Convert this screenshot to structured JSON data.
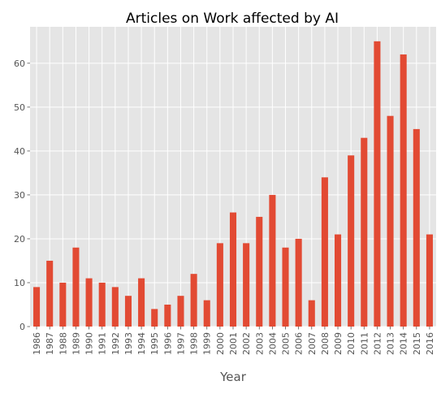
{
  "chart_data": {
    "type": "bar",
    "title": "Articles on Work affected by AI",
    "xlabel": "Year",
    "ylabel": "",
    "categories": [
      "1986",
      "1987",
      "1988",
      "1989",
      "1990",
      "1991",
      "1992",
      "1993",
      "1994",
      "1995",
      "1996",
      "1997",
      "1998",
      "1999",
      "2000",
      "2001",
      "2002",
      "2003",
      "2004",
      "2005",
      "2006",
      "2007",
      "2008",
      "2009",
      "2010",
      "2011",
      "2012",
      "2013",
      "2014",
      "2015",
      "2016"
    ],
    "values": [
      9,
      15,
      10,
      18,
      11,
      10,
      9,
      7,
      11,
      4,
      5,
      7,
      12,
      6,
      19,
      26,
      19,
      25,
      30,
      18,
      20,
      6,
      34,
      21,
      39,
      43,
      65,
      48,
      62,
      45,
      21
    ],
    "ylim": [
      0,
      68.3
    ],
    "yticks": [
      0,
      10,
      20,
      30,
      40,
      50,
      60
    ],
    "grid": true,
    "style": "ggplot",
    "colors": {
      "bar": "#E24A33",
      "plot_bg": "#E5E5E5",
      "grid": "#FFFFFF",
      "text": "#555555",
      "title": "#000000"
    }
  }
}
